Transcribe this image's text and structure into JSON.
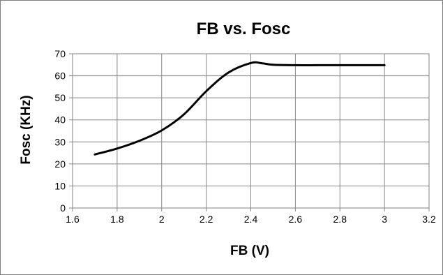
{
  "chart_data": {
    "type": "line",
    "title": "FB vs. Fosc",
    "xlabel": "FB (V)",
    "ylabel": "Fosc (KHz)",
    "xlim": [
      1.6,
      3.2
    ],
    "ylim": [
      0,
      70
    ],
    "x_ticks": [
      "1.6",
      "1.8",
      "2",
      "2.2",
      "2.4",
      "2.6",
      "2.8",
      "3",
      "3.2"
    ],
    "y_ticks": [
      "0",
      "10",
      "20",
      "30",
      "40",
      "50",
      "60",
      "70"
    ],
    "x_tick_values": [
      1.6,
      1.8,
      2.0,
      2.2,
      2.4,
      2.6,
      2.8,
      3.0,
      3.2
    ],
    "y_tick_values": [
      0,
      10,
      20,
      30,
      40,
      50,
      60,
      70
    ],
    "grid": true,
    "legend": "none",
    "series": [
      {
        "color": "#000000",
        "x": [
          1.7,
          1.8,
          1.9,
          2.0,
          2.1,
          2.2,
          2.3,
          2.4,
          2.45,
          2.5,
          2.6,
          2.7,
          2.8,
          2.9,
          3.0
        ],
        "y": [
          24.3,
          27.0,
          30.5,
          35.2,
          42.5,
          53.0,
          61.5,
          65.8,
          65.7,
          65.0,
          64.8,
          64.8,
          64.8,
          64.8,
          64.8
        ]
      }
    ]
  }
}
